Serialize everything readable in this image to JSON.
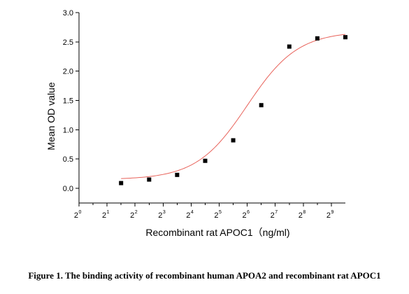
{
  "caption": "Figure 1. The binding activity of recombinant human APOA2 and recombinant rat APOC1",
  "chart_data": {
    "type": "scatter",
    "xlabel": "Recombinant rat  APOC1（ng/ml)",
    "ylabel": "Mean OD value",
    "x_scale": "log2",
    "xlim": [
      1,
      724
    ],
    "ylim": [
      -0.25,
      3.0
    ],
    "x_ticks": [
      {
        "base": "2",
        "exp": "0",
        "value": 1
      },
      {
        "base": "2",
        "exp": "1",
        "value": 2
      },
      {
        "base": "2",
        "exp": "2",
        "value": 4
      },
      {
        "base": "2",
        "exp": "3",
        "value": 8
      },
      {
        "base": "2",
        "exp": "4",
        "value": 16
      },
      {
        "base": "2",
        "exp": "5",
        "value": 32
      },
      {
        "base": "2",
        "exp": "6",
        "value": 64
      },
      {
        "base": "2",
        "exp": "7",
        "value": 128
      },
      {
        "base": "2",
        "exp": "8",
        "value": 256
      },
      {
        "base": "2",
        "exp": "9",
        "value": 512
      }
    ],
    "y_ticks": [
      {
        "label": "0.0",
        "value": 0.0
      },
      {
        "label": "0.5",
        "value": 0.5
      },
      {
        "label": "1.0",
        "value": 1.0
      },
      {
        "label": "1.5",
        "value": 1.5
      },
      {
        "label": "2.0",
        "value": 2.0
      },
      {
        "label": "2.5",
        "value": 2.5
      },
      {
        "label": "3.0",
        "value": 3.0
      }
    ],
    "points": [
      {
        "x": 2.83,
        "y": 0.09
      },
      {
        "x": 5.66,
        "y": 0.15
      },
      {
        "x": 11.31,
        "y": 0.23
      },
      {
        "x": 22.63,
        "y": 0.47
      },
      {
        "x": 45.25,
        "y": 0.82
      },
      {
        "x": 90.51,
        "y": 1.42
      },
      {
        "x": 181.02,
        "y": 2.42
      },
      {
        "x": 362.04,
        "y": 2.56
      },
      {
        "x": 724.08,
        "y": 2.58
      }
    ],
    "fit": {
      "model": "4PL",
      "bottom": 0.15,
      "top": 2.68,
      "ec50": 64,
      "hill": 1.6,
      "x_from": 2.83,
      "x_to": 724.08
    },
    "colors": {
      "points": "#000000",
      "fit": "#e8625a"
    }
  }
}
